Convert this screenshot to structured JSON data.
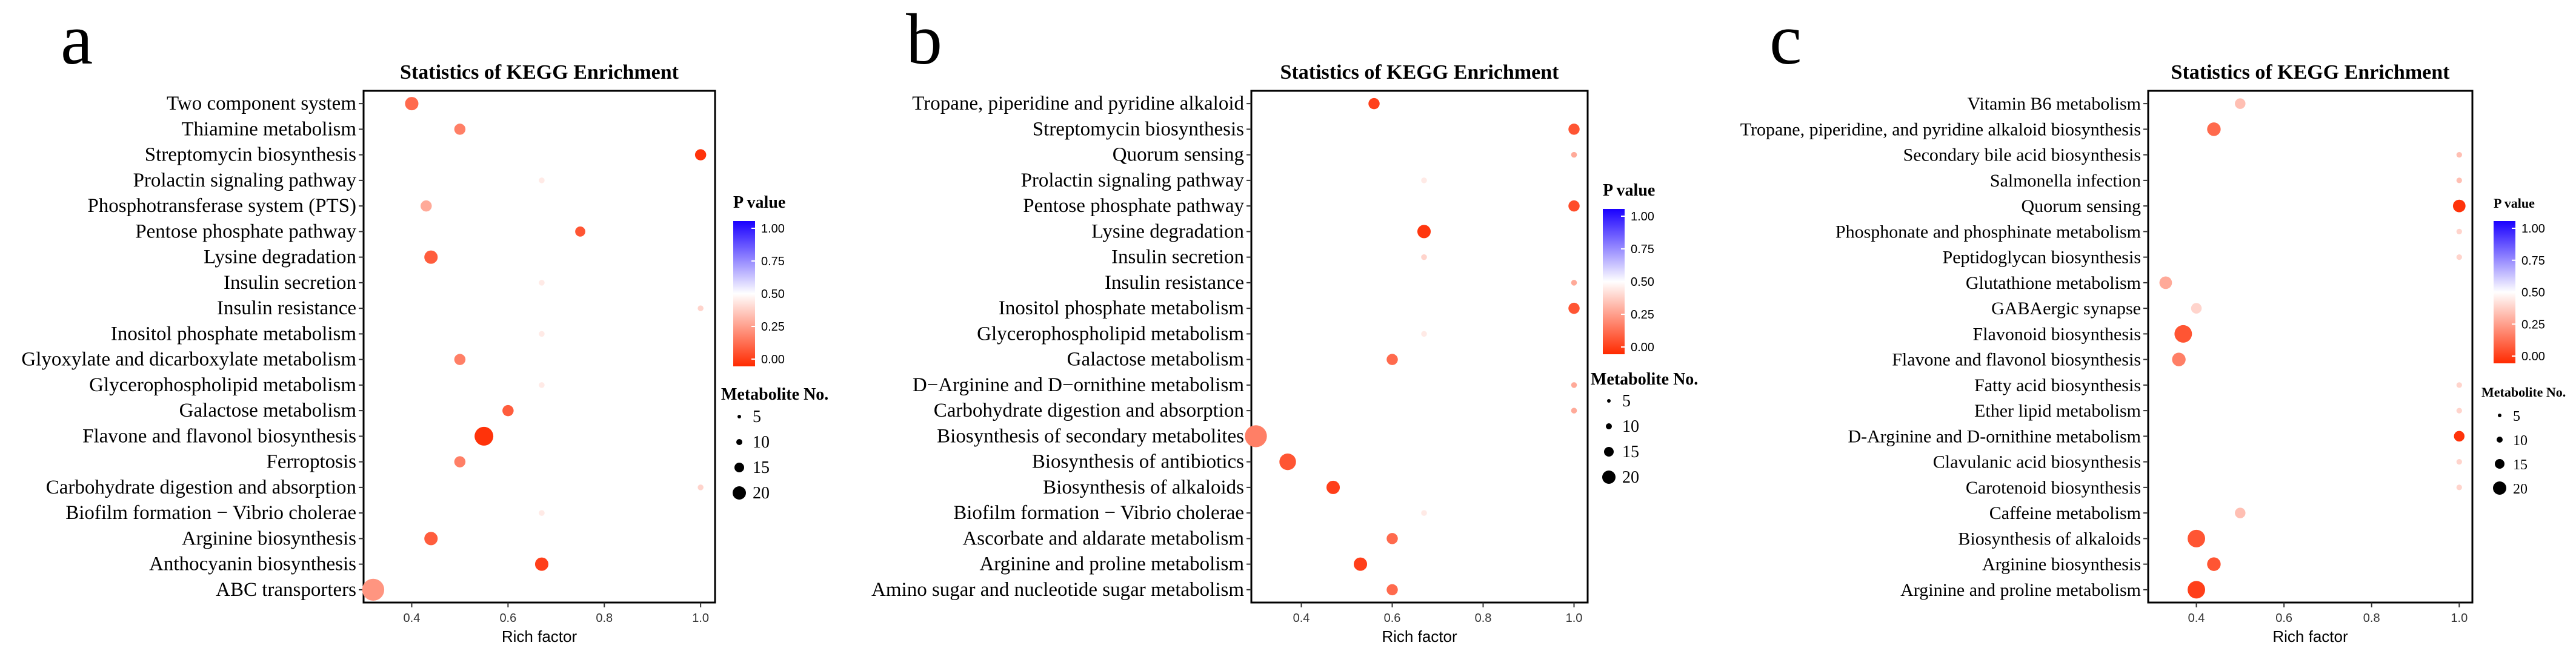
{
  "colors": {
    "low_p": "#ff2a00",
    "mid_p": "#ffffff",
    "high_p": "#1a00ff",
    "frame": "#000000"
  },
  "legend": {
    "color_title": "P value",
    "color_ticks": [
      "1.00",
      "0.75",
      "0.50",
      "0.25",
      "0.00"
    ],
    "size_title": "Metabolite No.",
    "size_values": [
      5,
      10,
      15,
      20
    ]
  },
  "chart_data": [
    {
      "type": "scatter",
      "panel_label": "a",
      "title": "Statistics of KEGG Enrichment",
      "xlabel": "Rich factor",
      "xlim": [
        0.3,
        1.03
      ],
      "xticks": [
        0.4,
        0.6,
        0.8,
        1.0
      ],
      "xtick_labels": [
        "0.4",
        "0.6",
        "0.8",
        "1.0"
      ],
      "p_value_range": [
        0,
        1
      ],
      "size_range": [
        5,
        20
      ],
      "categories": [
        "Two component system",
        "Thiamine metabolism",
        "Streptomycin biosynthesis",
        "Prolactin signaling pathway",
        "Phosphotransferase system (PTS)",
        "Pentose phosphate pathway",
        "Lysine degradation",
        "Insulin secretion",
        "Insulin resistance",
        "Inositol phosphate metabolism",
        "Glyoxylate and dicarboxylate metabolism",
        "Glycerophospholipid metabolism",
        "Galactose metabolism",
        "Flavone and flavonol biosynthesis",
        "Ferroptosis",
        "Carbohydrate digestion and absorption",
        "Biofilm formation − Vibrio cholerae",
        "Arginine biosynthesis",
        "Anthocyanin biosynthesis",
        "ABC transporters"
      ],
      "rich_factor": [
        0.4,
        0.5,
        1.0,
        0.67,
        0.43,
        0.75,
        0.44,
        0.67,
        1.0,
        0.67,
        0.5,
        0.67,
        0.6,
        0.55,
        0.5,
        1.0,
        0.67,
        0.44,
        0.67,
        0.32
      ],
      "p_value": [
        0.15,
        0.2,
        0.02,
        0.45,
        0.3,
        0.1,
        0.12,
        0.45,
        0.4,
        0.45,
        0.2,
        0.45,
        0.12,
        0.02,
        0.2,
        0.4,
        0.45,
        0.12,
        0.05,
        0.25
      ],
      "metabolite_no": [
        9,
        7,
        7,
        2,
        7,
        6,
        9,
        2,
        2,
        2,
        7,
        2,
        7,
        14,
        7,
        2,
        2,
        9,
        9,
        17
      ]
    },
    {
      "type": "scatter",
      "panel_label": "b",
      "title": "Statistics of KEGG Enrichment",
      "xlabel": "Rich factor",
      "xlim": [
        0.29,
        1.03
      ],
      "xticks": [
        0.4,
        0.6,
        0.8,
        1.0
      ],
      "xtick_labels": [
        "0.4",
        "0.6",
        "0.8",
        "1.0"
      ],
      "p_value_range": [
        0,
        1
      ],
      "size_range": [
        5,
        20
      ],
      "categories": [
        "Tropane, piperidine and pyridine alkaloid",
        "Streptomycin biosynthesis",
        "Quorum sensing",
        "Prolactin signaling pathway",
        "Pentose phosphate pathway",
        "Lysine degradation",
        "Insulin secretion",
        "Insulin resistance",
        "Inositol phosphate metabolism",
        "Glycerophospholipid metabolism",
        "Galactose metabolism",
        "D−Arginine and D−ornithine metabolism",
        "Carbohydrate digestion and absorption",
        "Biosynthesis of secondary metabolites",
        "Biosynthesis of antibiotics",
        "Biosynthesis of alkaloids",
        "Biofilm formation − Vibrio cholerae",
        "Ascorbate and aldarate metabolism",
        "Arginine and proline metabolism",
        "Amino sugar and nucleotide sugar metabolism"
      ],
      "rich_factor": [
        0.56,
        1.0,
        1.0,
        0.67,
        1.0,
        0.67,
        0.67,
        1.0,
        1.0,
        0.67,
        0.6,
        1.0,
        1.0,
        0.3,
        0.37,
        0.47,
        0.67,
        0.6,
        0.53,
        0.6
      ],
      "p_value": [
        0.05,
        0.1,
        0.3,
        0.45,
        0.08,
        0.03,
        0.4,
        0.3,
        0.1,
        0.45,
        0.15,
        0.3,
        0.3,
        0.2,
        0.1,
        0.05,
        0.45,
        0.15,
        0.05,
        0.15
      ],
      "metabolite_no": [
        7,
        7,
        2,
        2,
        7,
        9,
        2,
        2,
        7,
        2,
        7,
        2,
        2,
        17,
        12,
        9,
        2,
        7,
        9,
        7
      ]
    },
    {
      "type": "scatter",
      "panel_label": "c",
      "title": "Statistics of KEGG Enrichment",
      "xlabel": "Rich factor",
      "xlim": [
        0.29,
        1.03
      ],
      "xticks": [
        0.4,
        0.6,
        0.8,
        1.0
      ],
      "xtick_labels": [
        "0.4",
        "0.6",
        "0.8",
        "1.0"
      ],
      "p_value_range": [
        0,
        1
      ],
      "size_range": [
        5,
        20
      ],
      "categories": [
        "Vitamin B6 metabolism",
        "Tropane, piperidine, and pyridine alkaloid biosynthesis",
        "Secondary bile acid biosynthesis",
        "Salmonella infection",
        "Quorum sensing",
        "Phosphonate and phosphinate metabolism",
        "Peptidoglycan biosynthesis",
        "Glutathione metabolism",
        "GABAergic synapse",
        "Flavonoid biosynthesis",
        "Flavone and flavonol biosynthesis",
        "Fatty acid biosynthesis",
        "Ether lipid metabolism",
        "D-Arginine and D-ornithine metabolism",
        "Clavulanic acid biosynthesis",
        "Carotenoid biosynthesis",
        "Caffeine metabolism",
        "Biosynthesis of alkaloids",
        "Arginine biosynthesis",
        "Arginine and proline metabolism"
      ],
      "rich_factor": [
        0.5,
        0.44,
        1.0,
        1.0,
        1.0,
        1.0,
        1.0,
        0.33,
        0.4,
        0.37,
        0.36,
        1.0,
        1.0,
        1.0,
        1.0,
        1.0,
        0.5,
        0.4,
        0.44,
        0.4
      ],
      "p_value": [
        0.35,
        0.15,
        0.35,
        0.35,
        0.02,
        0.4,
        0.4,
        0.3,
        0.4,
        0.1,
        0.2,
        0.4,
        0.4,
        0.02,
        0.4,
        0.4,
        0.35,
        0.1,
        0.1,
        0.05
      ],
      "metabolite_no": [
        7,
        10,
        2,
        2,
        9,
        2,
        2,
        9,
        7,
        14,
        10,
        2,
        2,
        7,
        2,
        2,
        7,
        14,
        10,
        14
      ]
    }
  ]
}
